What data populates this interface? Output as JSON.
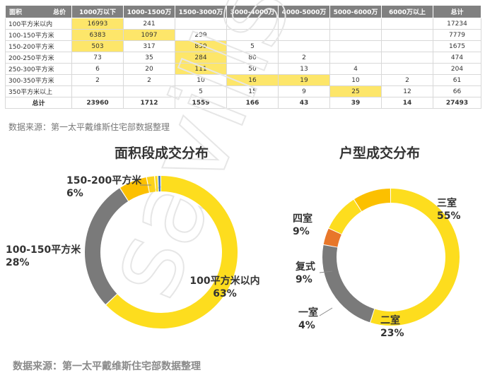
{
  "table": {
    "corner_left": "面积",
    "corner_right": "总价",
    "columns": [
      "1000万以下",
      "1000-1500万",
      "1500-3000万",
      "3000-4000万",
      "4000-5000万",
      "5000-6000万",
      "6000万以上",
      "总计"
    ],
    "rows": [
      {
        "label": "100平方米以内",
        "cells": [
          "16993",
          "241",
          "",
          "",
          "",
          "",
          "",
          "17234"
        ]
      },
      {
        "label": "100-150平方米",
        "cells": [
          "6383",
          "1097",
          "299",
          "",
          "",
          "",
          "",
          "7779"
        ]
      },
      {
        "label": "150-200平方米",
        "cells": [
          "503",
          "317",
          "850",
          "5",
          "",
          "",
          "",
          "1675"
        ]
      },
      {
        "label": "200-250平方米",
        "cells": [
          "73",
          "35",
          "284",
          "80",
          "2",
          "",
          "",
          "474"
        ]
      },
      {
        "label": "250-300平方米",
        "cells": [
          "6",
          "20",
          "111",
          "50",
          "13",
          "4",
          "",
          "204"
        ]
      },
      {
        "label": "300-350平方米",
        "cells": [
          "2",
          "2",
          "10",
          "16",
          "19",
          "10",
          "2",
          "61"
        ]
      },
      {
        "label": "350平方米以上",
        "cells": [
          "",
          "",
          "5",
          "15",
          "9",
          "25",
          "12",
          "66"
        ]
      }
    ],
    "total_row": {
      "label": "总计",
      "cells": [
        "23960",
        "1712",
        "1559",
        "166",
        "43",
        "39",
        "14",
        "27493"
      ]
    },
    "highlight_color": "#fde66a"
  },
  "source_top": "数据来源：第一太平戴维斯住宅部数据整理",
  "source_bottom": "数据来源：第一太平戴维斯住宅部数据整理",
  "watermark": "savills",
  "chart_data": [
    {
      "type": "pie",
      "donut": true,
      "title": "面积段成交分布",
      "slices": [
        {
          "label": "100平方米以内",
          "value": 63,
          "value_label": "63%",
          "color": "#fddd1e"
        },
        {
          "label": "100-150平方米",
          "value": 28,
          "value_label": "28%",
          "color": "#7a7a7a"
        },
        {
          "label": "150-200平方米",
          "value": 6,
          "value_label": "6%",
          "color": "#fcc000"
        },
        {
          "label": "",
          "value": 1.7,
          "value_label": "",
          "color": "#fcd31a"
        },
        {
          "label": "",
          "value": 0.7,
          "value_label": "",
          "color": "#fddd1e"
        },
        {
          "label": "",
          "value": 0.6,
          "value_label": "",
          "color": "#3c6fb4"
        }
      ]
    },
    {
      "type": "pie",
      "donut": true,
      "title": "户型成交分布",
      "slices": [
        {
          "label": "三室",
          "value": 55,
          "value_label": "55%",
          "color": "#fddd1e"
        },
        {
          "label": "二室",
          "value": 23,
          "value_label": "23%",
          "color": "#7a7a7a"
        },
        {
          "label": "一室",
          "value": 4,
          "value_label": "4%",
          "color": "#e8772a"
        },
        {
          "label": "复式",
          "value": 9,
          "value_label": "9%",
          "color": "#fddd1e"
        },
        {
          "label": "四室",
          "value": 9,
          "value_label": "9%",
          "color": "#fcc000"
        }
      ]
    }
  ]
}
